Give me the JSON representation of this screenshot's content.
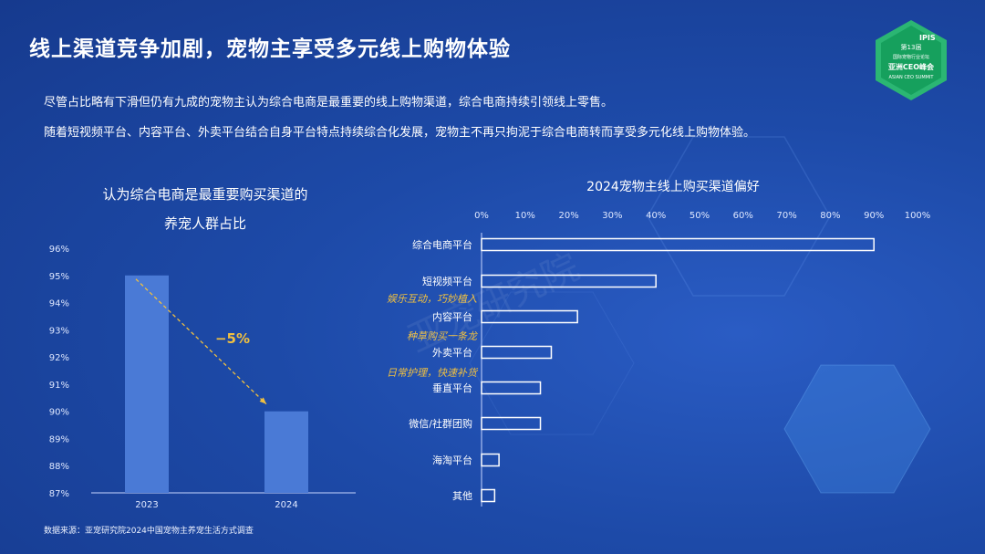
{
  "header": {
    "title": "线上渠道竞争加剧，宠物主享受多元线上购物体验",
    "paragraph1": "尽管占比略有下滑但仍有九成的宠物主认为综合电商是最重要的线上购物渠道，综合电商持续引领线上零售。",
    "paragraph2": "随着短视频平台、内容平台、外卖平台结合自身平台特点持续综合化发展，宠物主不再只拘泥于综合电商转而享受多元化线上购物体验。"
  },
  "badge": {
    "line1": "IPIS",
    "line2": "第13届",
    "line3": "国际宠物行业论坛",
    "line4": "亚洲CEO峰会",
    "line5": "ASIAN CEO SUMMIT"
  },
  "watermark": "亚宠研究院",
  "source": "数据来源：亚宠研究院2024中国宠物主养宠生活方式调查",
  "colors": {
    "bar_left": "#4a7ad6",
    "annotation": "#f0c040",
    "background": "#1d4aa8"
  },
  "chart_data": [
    {
      "type": "bar",
      "title": "认为综合电商是最重要购买渠道的",
      "subtitle": "养宠人群占比",
      "categories": [
        "2023",
        "2024"
      ],
      "values": [
        95,
        90
      ],
      "ylim": [
        87,
        96
      ],
      "yticks": [
        "87%",
        "88%",
        "89%",
        "90%",
        "91%",
        "92%",
        "93%",
        "94%",
        "95%",
        "96%"
      ],
      "change_label": "−5%"
    },
    {
      "type": "bar",
      "orientation": "horizontal",
      "title": "2024宠物主线上购买渠道偏好",
      "categories": [
        "综合电商平台",
        "短视频平台",
        "内容平台",
        "外卖平台",
        "垂直平台",
        "微信/社群团购",
        "海淘平台",
        "其他"
      ],
      "values": [
        90,
        40,
        22,
        16,
        13.5,
        13.5,
        4,
        3
      ],
      "xlim": [
        0,
        100
      ],
      "xticks": [
        "0%",
        "10%",
        "20%",
        "30%",
        "40%",
        "50%",
        "60%",
        "70%",
        "80%",
        "90%",
        "100%"
      ],
      "annotations": [
        "娱乐互动，巧妙植入",
        "种草购买一条龙",
        "日常护理，快速补货"
      ]
    }
  ]
}
